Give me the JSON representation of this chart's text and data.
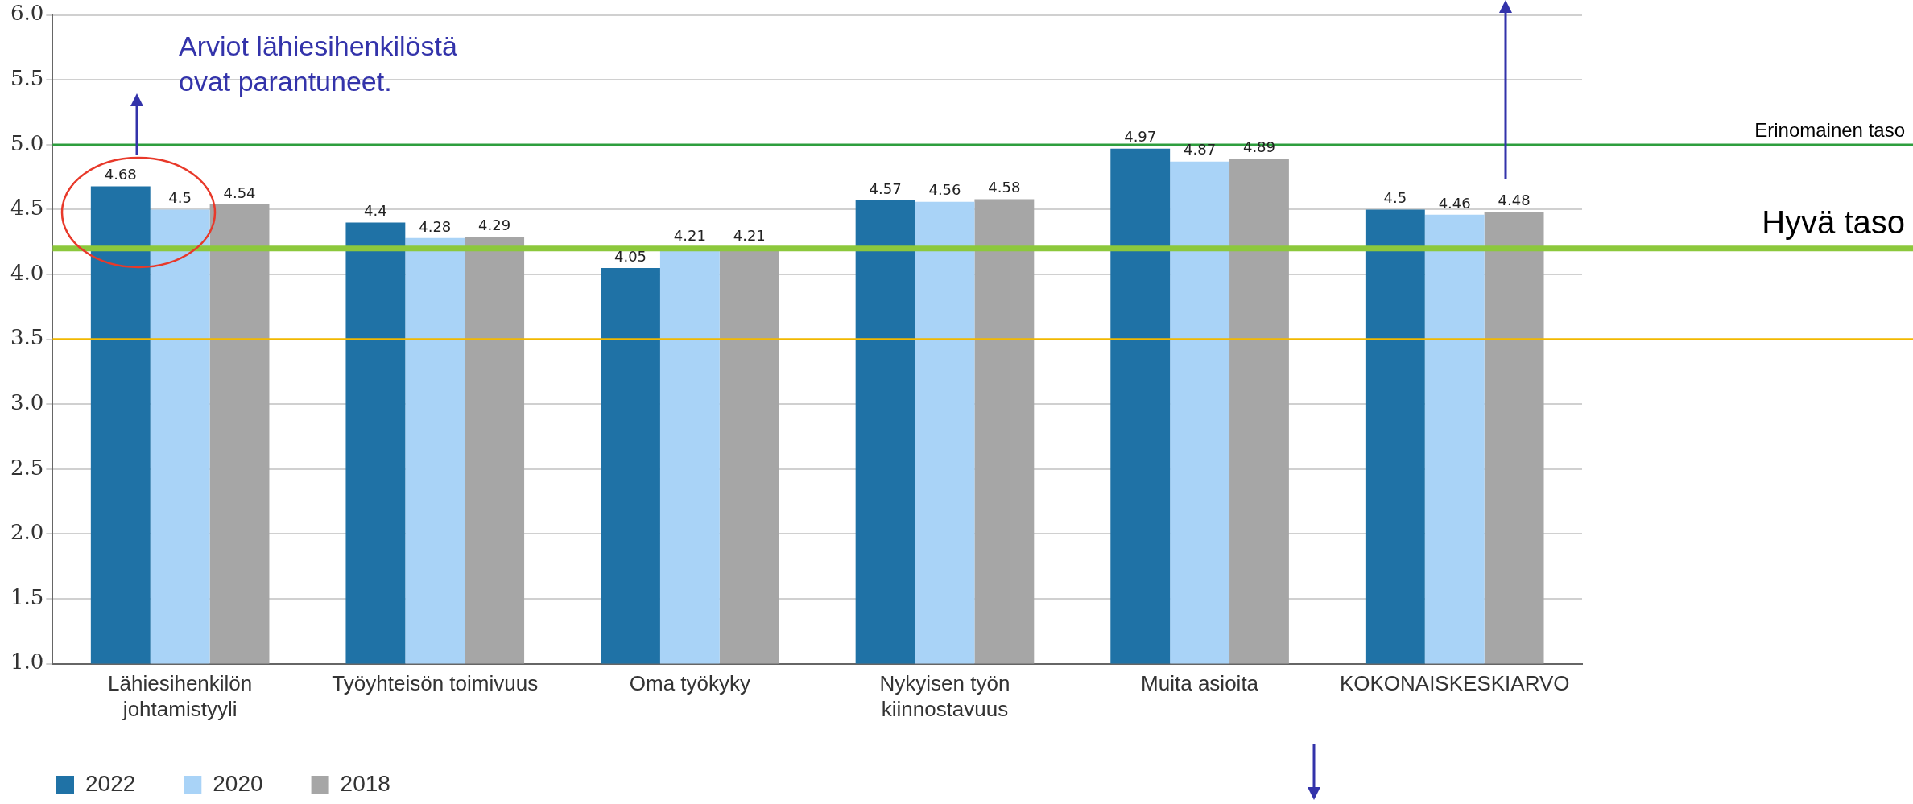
{
  "chart_data": {
    "type": "bar",
    "categories": [
      "Lähiesihenkilön johtamistyyli",
      "Työyhteisön toimivuus",
      "Oma työkyky",
      "Nykyisen työn kiinnostavuus",
      "Muita asioita",
      "KOKONAISKESKIARVO"
    ],
    "series": [
      {
        "name": "2022",
        "color": "#1f72a6",
        "values": [
          4.68,
          4.4,
          4.05,
          4.57,
          4.97,
          4.5
        ]
      },
      {
        "name": "2020",
        "color": "#a9d3f7",
        "values": [
          4.5,
          4.28,
          4.21,
          4.56,
          4.87,
          4.46
        ]
      },
      {
        "name": "2018",
        "color": "#a6a6a6",
        "values": [
          4.54,
          4.29,
          4.21,
          4.58,
          4.89,
          4.48
        ]
      }
    ],
    "ylim": [
      1.0,
      6.0
    ],
    "yticks": [
      {
        "value": 1,
        "label": "1.0"
      },
      {
        "value": 1.5,
        "label": "1.5"
      },
      {
        "value": 2,
        "label": "2.0"
      },
      {
        "value": 2.5,
        "label": "2.5"
      },
      {
        "value": 3,
        "label": "3.0"
      },
      {
        "value": 3.5,
        "label": "3.5"
      },
      {
        "value": 4,
        "label": "4.0"
      },
      {
        "value": 4.5,
        "label": "4.5"
      },
      {
        "value": 5,
        "label": "5.0"
      },
      {
        "value": 5.5,
        "label": "5.5"
      },
      {
        "value": 6,
        "label": "6.0"
      }
    ],
    "grid": "y",
    "legend": "bottom left",
    "data_labels": true,
    "ref_lines": [
      {
        "axis": "y",
        "value": 5.0,
        "label": "Erinomainen taso",
        "color": "#2e9e3e"
      },
      {
        "axis": "y",
        "value": 4.2,
        "label": "Hyvä taso",
        "color": "#8cc83c"
      },
      {
        "axis": "y",
        "value": 3.5,
        "label": null,
        "color": "#f2b800"
      }
    ],
    "annotations": [
      "Arviot lähiesihenkilöstä\novat parantuneet."
    ]
  }
}
